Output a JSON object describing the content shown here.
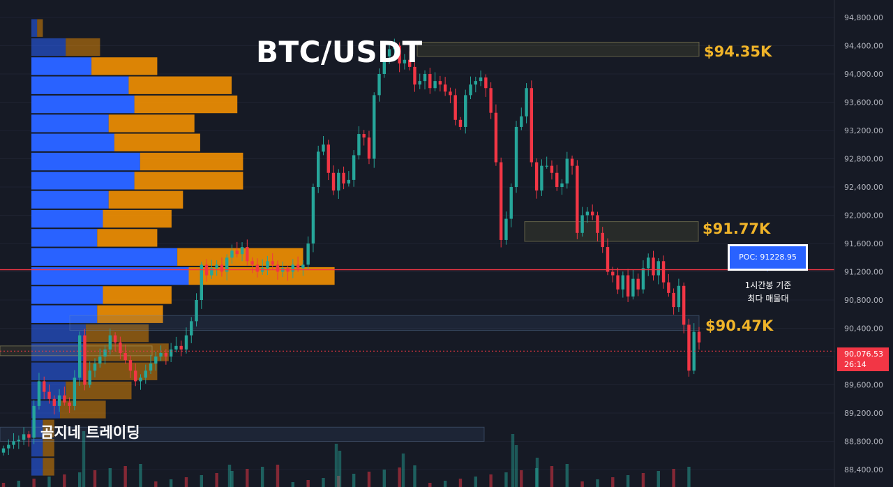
{
  "title": "BTC/USDT",
  "brand": "곰지네 트레이딩",
  "levels": [
    {
      "label": "$94.35K",
      "price": 94350
    },
    {
      "label": "$91.77K",
      "price": 91770
    },
    {
      "label": "$90.47K",
      "price": 90470
    }
  ],
  "poc": {
    "label": "POC: 91228.95",
    "price": 91228.95
  },
  "note": {
    "line1": "1시간봉 기준",
    "line2": "최다 매물대"
  },
  "current_price": {
    "price": "90,076.53",
    "countdown": "26:14"
  },
  "colors": {
    "background": "#161a25",
    "up": "#26a69a",
    "down": "#f23645",
    "volume_buy": "#2962ff",
    "volume_sell": "#ff9800",
    "level_text": "#f0b429",
    "poc_line": "#f23645"
  },
  "chart_data": {
    "type": "candlestick",
    "title": "BTC/USDT",
    "timeframe_note": "1시간봉 기준",
    "y_axis": {
      "position": "right",
      "range": [
        88200,
        94950
      ],
      "ticks": [
        94800,
        94400,
        94000,
        93600,
        93200,
        92800,
        92400,
        92000,
        91600,
        91200,
        90800,
        90400,
        90000,
        89600,
        89200,
        88800,
        88400
      ],
      "tick_labels": [
        "94,800.00",
        "94,400.00",
        "94,000.00",
        "93,600.00",
        "93,200.00",
        "92,800.00",
        "92,400.00",
        "92,000.00",
        "91,600.00",
        "91,200.00",
        "90,800.00",
        "90,400.00",
        "89,600.00",
        "89,200.00",
        "88,800.00",
        "88,400.00"
      ]
    },
    "close_sequence": [
      88700,
      88750,
      88800,
      88820,
      88900,
      88850,
      89300,
      89650,
      89500,
      89400,
      89300,
      89450,
      89350,
      89300,
      89700,
      90300,
      89600,
      89800,
      89900,
      90000,
      90100,
      90300,
      90200,
      90050,
      89950,
      89800,
      89650,
      89700,
      89800,
      89900,
      90000,
      90050,
      90000,
      90100,
      90150,
      90100,
      90300,
      90500,
      90800,
      91300,
      91150,
      91250,
      91300,
      91200,
      91400,
      91500,
      91450,
      91550,
      91350,
      91300,
      91200,
      91250,
      91350,
      91300,
      91200,
      91250,
      91200,
      91300,
      91250,
      91300,
      91600,
      92400,
      92900,
      93000,
      92600,
      92350,
      92600,
      92450,
      92500,
      92850,
      93150,
      93100,
      92800,
      93700,
      94000,
      94250,
      94350,
      94400,
      94150,
      94200,
      94100,
      93850,
      93900,
      94000,
      93800,
      93900,
      93850,
      93750,
      93700,
      93350,
      93250,
      93700,
      93850,
      93900,
      93950,
      93800,
      93450,
      92750,
      91650,
      91950,
      92400,
      93250,
      93400,
      93800,
      92750,
      92350,
      92700,
      92700,
      92600,
      92400,
      92450,
      92800,
      92700,
      91750,
      92000,
      92050,
      92000,
      91750,
      91550,
      91200,
      91150,
      90950,
      91150,
      90850,
      91100,
      90950,
      91250,
      91400,
      91150,
      91350,
      91050,
      90900,
      90700,
      91000,
      90450,
      89800,
      90350,
      90200
    ],
    "volume_profile": {
      "description": "Horizontal volume profile on the left; each row shows buy (blue) and sell (orange) volume",
      "rows": [
        {
          "price": 94650,
          "buy": 2,
          "sell": 2
        },
        {
          "price": 94380,
          "buy": 12,
          "sell": 12
        },
        {
          "price": 94110,
          "buy": 21,
          "sell": 23
        },
        {
          "price": 93840,
          "buy": 34,
          "sell": 36
        },
        {
          "price": 93570,
          "buy": 36,
          "sell": 36
        },
        {
          "price": 93300,
          "buy": 27,
          "sell": 30
        },
        {
          "price": 93030,
          "buy": 29,
          "sell": 30
        },
        {
          "price": 92760,
          "buy": 38,
          "sell": 36
        },
        {
          "price": 92490,
          "buy": 36,
          "sell": 38
        },
        {
          "price": 92220,
          "buy": 27,
          "sell": 26
        },
        {
          "price": 91950,
          "buy": 25,
          "sell": 24
        },
        {
          "price": 91680,
          "buy": 23,
          "sell": 21
        },
        {
          "price": 91410,
          "buy": 51,
          "sell": 44
        },
        {
          "price": 91140,
          "buy": 55,
          "sell": 51
        },
        {
          "price": 90870,
          "buy": 25,
          "sell": 24
        },
        {
          "price": 90600,
          "buy": 23,
          "sell": 23
        },
        {
          "price": 90330,
          "buy": 19,
          "sell": 22
        },
        {
          "price": 90060,
          "buy": 19,
          "sell": 29
        },
        {
          "price": 89790,
          "buy": 18,
          "sell": 26
        },
        {
          "price": 89520,
          "buy": 12,
          "sell": 23
        },
        {
          "price": 89250,
          "buy": 10,
          "sell": 16
        },
        {
          "price": 88980,
          "buy": 4,
          "sell": 4
        },
        {
          "price": 88710,
          "buy": 4,
          "sell": 4
        },
        {
          "price": 88440,
          "buy": 4,
          "sell": 4
        }
      ]
    },
    "zones": [
      {
        "label": "$94.35K",
        "low": 94250,
        "high": 94450
      },
      {
        "label": "$91.77K",
        "low": 91630,
        "high": 91910
      },
      {
        "label": "$90.47K",
        "low": 90370,
        "high": 90580
      },
      {
        "label": "",
        "low": 88800,
        "high": 89000
      }
    ],
    "poc_price": 91228.95,
    "last_price": 90076.53
  }
}
